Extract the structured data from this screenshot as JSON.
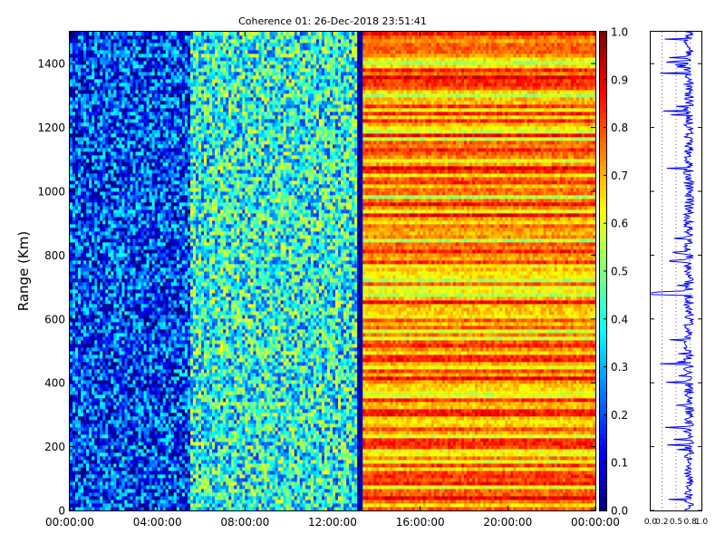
{
  "chart_data": [
    {
      "type": "heatmap",
      "title": "Coherence 01: 26-Dec-2018 23:51:41",
      "ylabel": "Range (Km)",
      "xlabel": "",
      "ylim": [
        0,
        1500
      ],
      "yticks": [
        0,
        200,
        400,
        600,
        800,
        1000,
        1200,
        1400
      ],
      "xlim": [
        "00:00:00",
        "00:00:00"
      ],
      "xticks": [
        "00:00:00",
        "04:00:00",
        "08:00:00",
        "12:00:00",
        "16:00:00",
        "20:00:00",
        "00:00:00"
      ],
      "colorbar": {
        "range": [
          0.0,
          1.0
        ],
        "ticks": [
          "0.0",
          "0.1",
          "0.2",
          "0.3",
          "0.4",
          "0.5",
          "0.6",
          "0.7",
          "0.8",
          "0.9",
          "1.0"
        ],
        "colormap": "jet"
      },
      "regions": [
        {
          "from_hour": 0.0,
          "to_hour": 5.5,
          "mean_coherence": 0.18
        },
        {
          "from_hour": 5.5,
          "to_hour": 13.1,
          "mean_coherence": 0.4
        },
        {
          "from_hour": 13.1,
          "to_hour": 13.4,
          "mean_coherence": 0.02
        },
        {
          "from_hour": 13.4,
          "to_hour": 24.0,
          "mean_coherence": 0.72
        }
      ]
    },
    {
      "type": "line",
      "title": "",
      "xlim": [
        0.0,
        1.0
      ],
      "xticks": [
        "0.0",
        "0.2",
        "0.5",
        "0.8",
        "1.0"
      ],
      "ylim": [
        0,
        1500
      ],
      "series": [
        {
          "color": "#0000ff",
          "mean": 0.75
        }
      ]
    }
  ]
}
